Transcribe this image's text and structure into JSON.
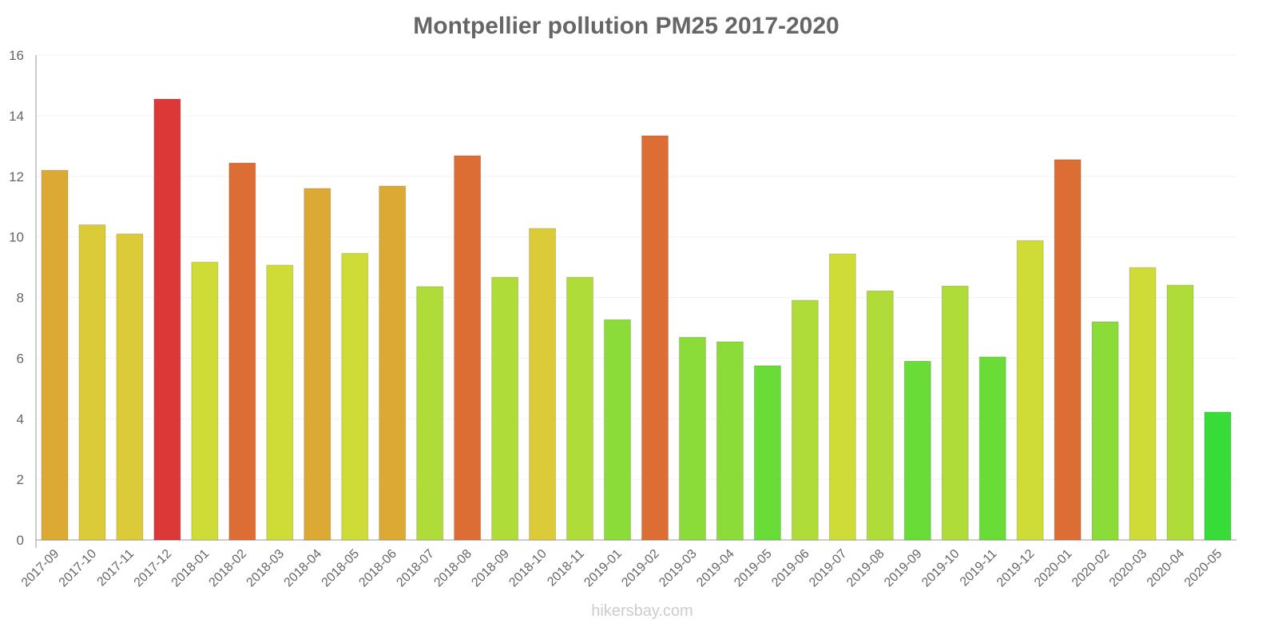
{
  "chart_data": {
    "type": "bar",
    "title": "Montpellier pollution PM25 2017-2020",
    "xlabel": "",
    "ylabel": "",
    "ylim": [
      0,
      16
    ],
    "yticks": [
      0,
      2,
      4,
      6,
      8,
      10,
      12,
      14,
      16
    ],
    "grid": true,
    "categories": [
      "2017-09",
      "2017-10",
      "2017-11",
      "2017-12",
      "2018-01",
      "2018-02",
      "2018-03",
      "2018-04",
      "2018-05",
      "2018-06",
      "2018-07",
      "2018-08",
      "2018-09",
      "2018-10",
      "2018-11",
      "2019-01",
      "2019-02",
      "2019-03",
      "2019-04",
      "2019-05",
      "2019-06",
      "2019-07",
      "2019-08",
      "2019-09",
      "2019-10",
      "2019-11",
      "2019-12",
      "2020-01",
      "2020-02",
      "2020-03",
      "2020-04",
      "2020-05"
    ],
    "values": [
      12.2,
      10.4,
      10.1,
      14.55,
      9.17,
      12.44,
      9.07,
      11.6,
      9.46,
      11.68,
      8.36,
      12.68,
      8.67,
      10.28,
      8.67,
      7.27,
      13.34,
      6.69,
      6.54,
      5.75,
      7.91,
      9.44,
      8.22,
      5.9,
      8.38,
      6.04,
      9.88,
      12.55,
      7.2,
      8.99,
      8.41,
      4.22
    ],
    "colors": [
      "#dda935",
      "#dccb38",
      "#dccb38",
      "#dc3838",
      "#cfdc38",
      "#dc6e35",
      "#cfdc38",
      "#dda935",
      "#cfdc38",
      "#dda935",
      "#afdc38",
      "#dc6e35",
      "#afdc38",
      "#dccb38",
      "#afdc38",
      "#8bdc38",
      "#dc6e35",
      "#8bdc38",
      "#8bdc38",
      "#6adc38",
      "#afdc38",
      "#cfdc38",
      "#afdc38",
      "#6adc38",
      "#afdc38",
      "#6adc38",
      "#cfdc38",
      "#dc6e35",
      "#8bdc38",
      "#cfdc38",
      "#afdc38",
      "#38dc38"
    ]
  },
  "footer": "hikersbay.com"
}
